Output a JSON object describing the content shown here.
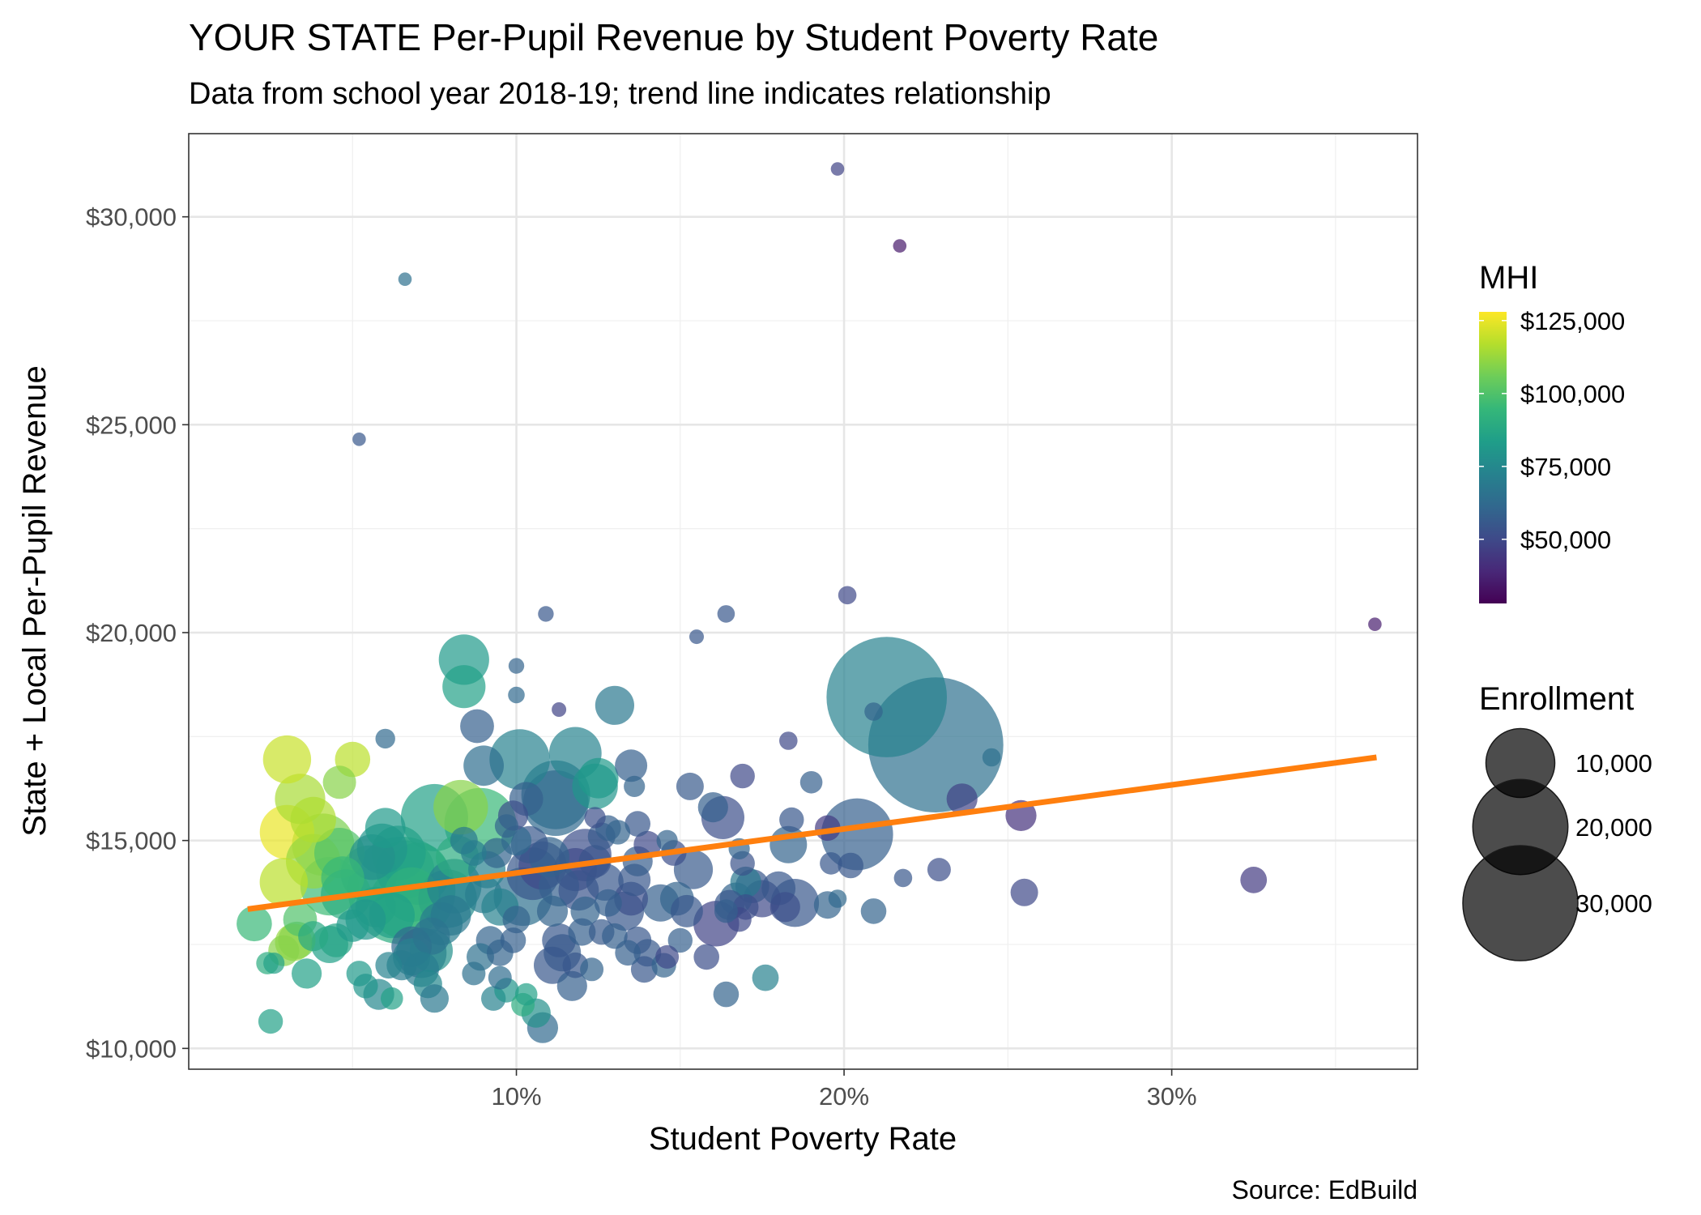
{
  "chart_data": {
    "type": "scatter",
    "title": "YOUR STATE Per-Pupil Revenue by Student Poverty Rate",
    "subtitle": "Data from school year 2018-19; trend line indicates relationship",
    "caption": "Source: EdBuild",
    "xlabel": "Student Poverty Rate",
    "ylabel": "State + Local Per-Pupil Revenue",
    "xlim": [
      0.0,
      0.375
    ],
    "ylim": [
      9500,
      32000
    ],
    "x_ticks": [
      0.1,
      0.2,
      0.3
    ],
    "x_tick_labels": [
      "10%",
      "20%",
      "30%"
    ],
    "y_ticks": [
      10000,
      15000,
      20000,
      25000,
      30000
    ],
    "y_tick_labels": [
      "$10,000",
      "$15,000",
      "$20,000",
      "$25,000",
      "$30,000"
    ],
    "grid": true,
    "legend_position": "right",
    "color_legend": {
      "title": "MHI",
      "min": 28000,
      "max": 128000,
      "ticks": [
        50000,
        75000,
        100000,
        125000
      ],
      "tick_labels": [
        "$50,000",
        "$75,000",
        "$100,000",
        "$125,000"
      ],
      "palette": [
        "#440154",
        "#482878",
        "#3E4A89",
        "#31688E",
        "#26828E",
        "#1F9E89",
        "#35B779",
        "#6DCD59",
        "#B4DE2C",
        "#FDE725"
      ]
    },
    "size_legend": {
      "title": "Enrollment",
      "values": [
        10000,
        20000,
        30000
      ],
      "labels": [
        "10,000",
        "20,000",
        "30,000"
      ]
    },
    "trend_line": {
      "color": "#FF7F0E",
      "x": [
        0.018,
        0.3625
      ],
      "y": [
        13350,
        17000
      ]
    },
    "point_columns": [
      "x",
      "y",
      "enrollment",
      "mhi"
    ],
    "points": [
      [
        0.198,
        31150,
        150,
        48000
      ],
      [
        0.217,
        29300,
        150,
        35000
      ],
      [
        0.066,
        28500,
        150,
        65000
      ],
      [
        0.052,
        24650,
        150,
        55000
      ],
      [
        0.362,
        20200,
        150,
        36000
      ],
      [
        0.201,
        20900,
        400,
        50000
      ],
      [
        0.109,
        20450,
        250,
        55000
      ],
      [
        0.164,
        20450,
        350,
        55000
      ],
      [
        0.155,
        19900,
        200,
        55000
      ],
      [
        0.084,
        19350,
        5000,
        82000
      ],
      [
        0.084,
        18700,
        3500,
        85000
      ],
      [
        0.1,
        19200,
        250,
        60000
      ],
      [
        0.1,
        18500,
        300,
        62000
      ],
      [
        0.113,
        18150,
        200,
        48000
      ],
      [
        0.13,
        18250,
        2800,
        68000
      ],
      [
        0.213,
        18450,
        33000,
        72000
      ],
      [
        0.228,
        17300,
        42000,
        65000
      ],
      [
        0.209,
        18100,
        400,
        60000
      ],
      [
        0.088,
        17750,
        2000,
        58000
      ],
      [
        0.06,
        17450,
        500,
        62000
      ],
      [
        0.101,
        16950,
        7500,
        72000
      ],
      [
        0.118,
        17100,
        5500,
        73000
      ],
      [
        0.112,
        16100,
        10000,
        67000
      ],
      [
        0.112,
        15900,
        9000,
        62000
      ],
      [
        0.124,
        16300,
        4000,
        80000
      ],
      [
        0.125,
        16500,
        3000,
        82000
      ],
      [
        0.03,
        16950,
        4500,
        120000
      ],
      [
        0.05,
        16950,
        2200,
        118000
      ],
      [
        0.046,
        16400,
        1900,
        110000
      ],
      [
        0.034,
        16000,
        5000,
        115000
      ],
      [
        0.03,
        15200,
        6000,
        125000
      ],
      [
        0.038,
        15500,
        4000,
        116000
      ],
      [
        0.041,
        14900,
        8000,
        108000
      ],
      [
        0.038,
        14500,
        6000,
        112000
      ],
      [
        0.029,
        14000,
        4500,
        118000
      ],
      [
        0.046,
        14700,
        5000,
        100000
      ],
      [
        0.047,
        14100,
        3500,
        95000
      ],
      [
        0.043,
        13900,
        7000,
        96000
      ],
      [
        0.048,
        13700,
        5000,
        90000
      ],
      [
        0.055,
        14200,
        6500,
        85000
      ],
      [
        0.059,
        14800,
        5000,
        80000
      ],
      [
        0.06,
        15300,
        3000,
        82000
      ],
      [
        0.056,
        14600,
        4000,
        78000
      ],
      [
        0.064,
        14700,
        6000,
        85000
      ],
      [
        0.066,
        14300,
        7000,
        88000
      ],
      [
        0.065,
        13800,
        26000,
        90000
      ],
      [
        0.066,
        13500,
        11000,
        95000
      ],
      [
        0.07,
        14200,
        8000,
        88000
      ],
      [
        0.068,
        13700,
        6000,
        92000
      ],
      [
        0.062,
        13200,
        4000,
        84000
      ],
      [
        0.057,
        13400,
        3000,
        86000
      ],
      [
        0.054,
        13100,
        3000,
        80000
      ],
      [
        0.05,
        12950,
        1800,
        82000
      ],
      [
        0.045,
        12600,
        2000,
        86000
      ],
      [
        0.043,
        12500,
        2500,
        84000
      ],
      [
        0.038,
        12700,
        1500,
        88000
      ],
      [
        0.034,
        13100,
        2000,
        100000
      ],
      [
        0.033,
        12600,
        2500,
        105000
      ],
      [
        0.029,
        12350,
        1600,
        110000
      ],
      [
        0.032,
        12550,
        2500,
        112000
      ],
      [
        0.036,
        11800,
        1500,
        85000
      ],
      [
        0.02,
        13000,
        2200,
        95000
      ],
      [
        0.024,
        12050,
        700,
        90000
      ],
      [
        0.026,
        12050,
        600,
        85000
      ],
      [
        0.025,
        10650,
        900,
        85000
      ],
      [
        0.052,
        11800,
        1000,
        82000
      ],
      [
        0.054,
        11500,
        900,
        80000
      ],
      [
        0.058,
        11300,
        1600,
        75000
      ],
      [
        0.062,
        11200,
        700,
        85000
      ],
      [
        0.061,
        12000,
        1100,
        73000
      ],
      [
        0.065,
        12000,
        1500,
        70000
      ],
      [
        0.068,
        12200,
        2500,
        72000
      ],
      [
        0.068,
        12450,
        3000,
        62000
      ],
      [
        0.071,
        12300,
        5000,
        58000
      ],
      [
        0.074,
        12350,
        3500,
        78000
      ],
      [
        0.071,
        11900,
        2200,
        70000
      ],
      [
        0.073,
        11550,
        1300,
        75000
      ],
      [
        0.075,
        11200,
        1300,
        68000
      ],
      [
        0.074,
        12700,
        2500,
        66000
      ],
      [
        0.077,
        13000,
        3500,
        70000
      ],
      [
        0.079,
        13600,
        7000,
        76000
      ],
      [
        0.081,
        13900,
        6000,
        72000
      ],
      [
        0.08,
        13200,
        3000,
        68000
      ],
      [
        0.082,
        14600,
        3500,
        90000
      ],
      [
        0.075,
        15550,
        9500,
        85000
      ],
      [
        0.083,
        15800,
        6000,
        110000
      ],
      [
        0.089,
        15400,
        11000,
        95000
      ],
      [
        0.09,
        16800,
        3000,
        64000
      ],
      [
        0.084,
        15000,
        1200,
        68000
      ],
      [
        0.087,
        14700,
        1000,
        70000
      ],
      [
        0.091,
        14300,
        2500,
        72000
      ],
      [
        0.094,
        14700,
        1500,
        60000
      ],
      [
        0.09,
        13700,
        2500,
        70000
      ],
      [
        0.095,
        13400,
        2500,
        72000
      ],
      [
        0.092,
        12600,
        1300,
        60000
      ],
      [
        0.089,
        12200,
        1200,
        65000
      ],
      [
        0.095,
        12300,
        1100,
        60000
      ],
      [
        0.087,
        11800,
        800,
        65000
      ],
      [
        0.093,
        11200,
        900,
        72000
      ],
      [
        0.095,
        11700,
        800,
        63000
      ],
      [
        0.097,
        11400,
        900,
        80000
      ],
      [
        0.102,
        11050,
        800,
        90000
      ],
      [
        0.103,
        11300,
        700,
        85000
      ],
      [
        0.106,
        10850,
        1400,
        78000
      ],
      [
        0.108,
        10500,
        1600,
        62000
      ],
      [
        0.099,
        12600,
        1000,
        58000
      ],
      [
        0.1,
        13100,
        1200,
        60000
      ],
      [
        0.102,
        13650,
        7000,
        65000
      ],
      [
        0.105,
        14200,
        5500,
        55000
      ],
      [
        0.108,
        14400,
        4500,
        50000
      ],
      [
        0.11,
        14600,
        3000,
        60000
      ],
      [
        0.104,
        14900,
        2500,
        55000
      ],
      [
        0.1,
        15000,
        1500,
        62000
      ],
      [
        0.099,
        15600,
        1500,
        52000
      ],
      [
        0.103,
        16000,
        2000,
        58000
      ],
      [
        0.097,
        15350,
        800,
        60000
      ],
      [
        0.111,
        13300,
        1600,
        60000
      ],
      [
        0.113,
        13900,
        3000,
        58000
      ],
      [
        0.113,
        12600,
        2000,
        55000
      ],
      [
        0.114,
        12300,
        2500,
        57000
      ],
      [
        0.111,
        12000,
        2500,
        55000
      ],
      [
        0.117,
        11500,
        1500,
        58000
      ],
      [
        0.118,
        12000,
        1000,
        55000
      ],
      [
        0.12,
        12800,
        1200,
        58000
      ],
      [
        0.121,
        13300,
        1400,
        60000
      ],
      [
        0.119,
        13800,
        3000,
        54000
      ],
      [
        0.118,
        14300,
        3500,
        50000
      ],
      [
        0.121,
        14650,
        5500,
        52000
      ],
      [
        0.124,
        14500,
        1800,
        54000
      ],
      [
        0.126,
        15100,
        1200,
        56000
      ],
      [
        0.124,
        15550,
        600,
        52000
      ],
      [
        0.128,
        15300,
        1000,
        58000
      ],
      [
        0.127,
        14000,
        2500,
        55000
      ],
      [
        0.128,
        13500,
        1200,
        58000
      ],
      [
        0.126,
        12800,
        1000,
        56000
      ],
      [
        0.123,
        11900,
        800,
        60000
      ],
      [
        0.13,
        12700,
        1000,
        58000
      ],
      [
        0.133,
        13300,
        2800,
        55000
      ],
      [
        0.135,
        13600,
        2000,
        52000
      ],
      [
        0.136,
        14050,
        1800,
        55000
      ],
      [
        0.137,
        14500,
        1500,
        57000
      ],
      [
        0.131,
        15200,
        900,
        60000
      ],
      [
        0.137,
        15400,
        1000,
        55000
      ],
      [
        0.14,
        14900,
        1200,
        50000
      ],
      [
        0.137,
        12600,
        1200,
        55000
      ],
      [
        0.134,
        12300,
        1000,
        58000
      ],
      [
        0.14,
        12300,
        1200,
        56000
      ],
      [
        0.145,
        12000,
        900,
        60000
      ],
      [
        0.146,
        12200,
        800,
        50000
      ],
      [
        0.144,
        13500,
        2500,
        58000
      ],
      [
        0.149,
        13600,
        2000,
        60000
      ],
      [
        0.152,
        13300,
        1800,
        55000
      ],
      [
        0.154,
        14300,
        2800,
        56000
      ],
      [
        0.148,
        14700,
        1000,
        52000
      ],
      [
        0.146,
        15000,
        600,
        60000
      ],
      [
        0.153,
        16300,
        1200,
        56000
      ],
      [
        0.135,
        16800,
        1800,
        58000
      ],
      [
        0.136,
        16300,
        600,
        60000
      ],
      [
        0.139,
        11900,
        1100,
        55000
      ],
      [
        0.15,
        12600,
        900,
        58000
      ],
      [
        0.158,
        12200,
        1000,
        52000
      ],
      [
        0.161,
        13000,
        4000,
        48000
      ],
      [
        0.165,
        13450,
        1500,
        55000
      ],
      [
        0.167,
        13600,
        1800,
        60000
      ],
      [
        0.17,
        14000,
        1600,
        68000
      ],
      [
        0.172,
        13900,
        2000,
        55000
      ],
      [
        0.175,
        13600,
        2500,
        50000
      ],
      [
        0.18,
        13850,
        2000,
        55000
      ],
      [
        0.182,
        13400,
        1500,
        52000
      ],
      [
        0.185,
        13500,
        4500,
        55000
      ],
      [
        0.17,
        13400,
        1000,
        52000
      ],
      [
        0.164,
        13300,
        800,
        58000
      ],
      [
        0.168,
        13100,
        900,
        50000
      ],
      [
        0.169,
        14450,
        900,
        53000
      ],
      [
        0.168,
        14800,
        600,
        60000
      ],
      [
        0.163,
        15550,
        3500,
        52000
      ],
      [
        0.16,
        15800,
        1500,
        58000
      ],
      [
        0.169,
        16550,
        900,
        50000
      ],
      [
        0.183,
        14900,
        2500,
        60000
      ],
      [
        0.184,
        15500,
        900,
        55000
      ],
      [
        0.19,
        16400,
        700,
        58000
      ],
      [
        0.183,
        17400,
        400,
        50000
      ],
      [
        0.176,
        11700,
        1100,
        72000
      ],
      [
        0.164,
        11300,
        1000,
        60000
      ],
      [
        0.195,
        15300,
        1000,
        45000
      ],
      [
        0.196,
        14450,
        700,
        55000
      ],
      [
        0.195,
        13450,
        1200,
        60000
      ],
      [
        0.198,
        13600,
        400,
        62000
      ],
      [
        0.202,
        14400,
        1000,
        55000
      ],
      [
        0.204,
        15150,
        11000,
        58000
      ],
      [
        0.209,
        13300,
        1000,
        60000
      ],
      [
        0.218,
        14100,
        400,
        55000
      ],
      [
        0.229,
        14300,
        800,
        52000
      ],
      [
        0.236,
        16000,
        1600,
        48000
      ],
      [
        0.245,
        17000,
        400,
        65000
      ],
      [
        0.254,
        15600,
        1600,
        42000
      ],
      [
        0.255,
        13750,
        1200,
        50000
      ],
      [
        0.325,
        14050,
        1100,
        45000
      ]
    ]
  }
}
